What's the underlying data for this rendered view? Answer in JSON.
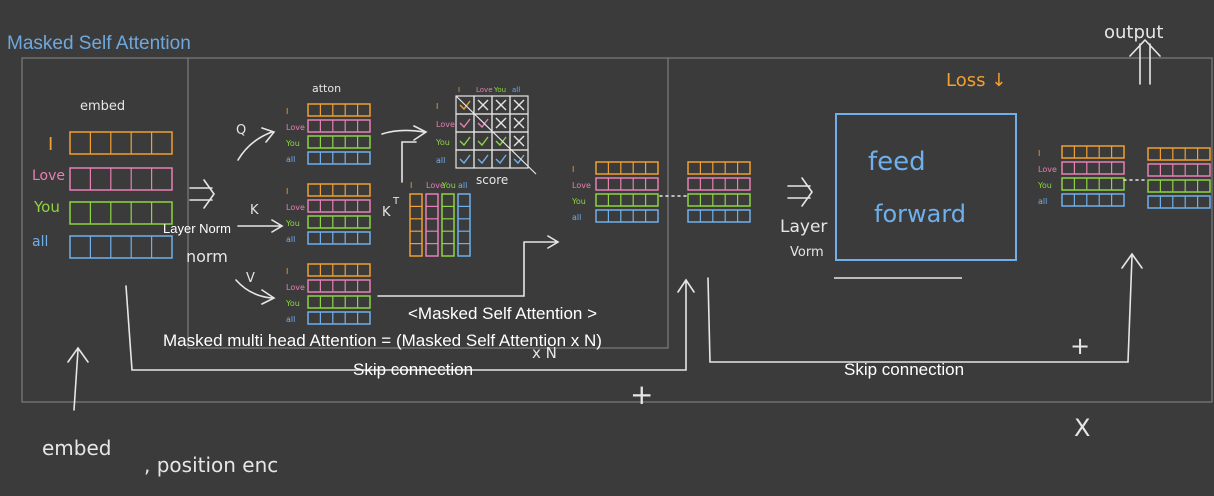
{
  "title": "Masked Self Attention",
  "labels": {
    "embed_top": "embed",
    "embed_bottom": "embed",
    "position_enc": ", position enc",
    "atton": "atton",
    "score": "score",
    "k_transpose": "K",
    "k_transpose_sup": "T",
    "q": "Q",
    "k": "K",
    "v": "V",
    "layer_norm_small": "Layer Norm",
    "norm_hw": "norm",
    "loss": "Loss ↓",
    "output": "output",
    "feed": "feed",
    "forward": "forward",
    "layer_hw": "Layer",
    "vorm_hw": "Vorm",
    "xn": "x N",
    "plus_1": "+",
    "plus_2": "+",
    "x_mark": "X",
    "caption_1": "<Masked Self Attention >",
    "caption_2": "Masked multi head Attention = (Masked Self Attention x N)",
    "skip_1": "Skip connection",
    "skip_2": "Skip connection"
  },
  "tokens": [
    "I",
    "Love",
    "You",
    "all"
  ],
  "colors": {
    "orange": "#f0a030",
    "pink": "#e87fb5",
    "green": "#8cd440",
    "blue": "#6fb0ec",
    "white": "#e6e6e6",
    "title": "#6fa8dc"
  },
  "mask": [
    "check",
    "x",
    "x",
    "x",
    "check",
    "check",
    "x",
    "x",
    "check",
    "check",
    "check",
    "x",
    "check",
    "check",
    "check",
    "check"
  ]
}
